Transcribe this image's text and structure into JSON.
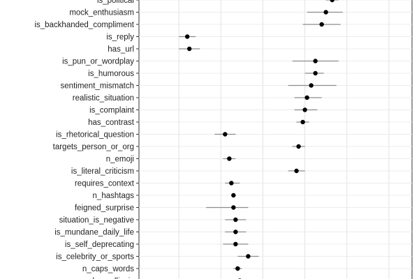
{
  "chart_data": {
    "type": "scatter",
    "title": "",
    "xlabel": "",
    "ylabel": "",
    "grid": true,
    "x_visible_range": [
      -0.59,
      0.71
    ],
    "x_gridlines": [
      -0.4,
      -0.2,
      0.0,
      0.2,
      0.4,
      0.6
    ],
    "categories": [
      "is_political",
      "mock_enthusiasm",
      "is_backhanded_compliment",
      "is_reply",
      "has_url",
      "is_pun_or_wordplay",
      "is_humorous",
      "sentiment_mismatch",
      "realistic_situation",
      "is_complaint",
      "has_contrast",
      "is_rhetorical_question",
      "targets_person_or_org",
      "n_emoji",
      "is_literal_criticism",
      "requires_context",
      "n_hashtags",
      "feigned_surprise",
      "situation_is_negative",
      "is_mundane_daily_life",
      "is_self_deprecating",
      "is_celebrity_or_sports",
      "n_caps_words",
      "has_ellipsis"
    ],
    "series": [
      {
        "estimate": [
          0.33,
          0.3,
          0.28,
          -0.36,
          -0.35,
          0.25,
          0.25,
          0.23,
          0.21,
          0.2,
          0.19,
          -0.18,
          0.17,
          -0.16,
          0.16,
          -0.15,
          -0.14,
          -0.14,
          -0.13,
          -0.13,
          -0.13,
          -0.07,
          -0.12,
          -0.11
        ],
        "ci_low": [
          0.3,
          0.21,
          0.19,
          -0.4,
          -0.4,
          0.14,
          0.2,
          0.12,
          0.15,
          0.15,
          0.16,
          -0.23,
          0.14,
          -0.19,
          0.12,
          -0.18,
          -0.15,
          -0.27,
          -0.18,
          -0.18,
          -0.19,
          -0.12,
          -0.14,
          -0.12
        ],
        "ci_high": [
          0.36,
          0.38,
          0.37,
          -0.32,
          -0.3,
          0.36,
          0.29,
          0.35,
          0.28,
          0.26,
          0.22,
          -0.13,
          0.2,
          -0.13,
          0.2,
          -0.11,
          -0.13,
          -0.07,
          -0.08,
          -0.08,
          -0.07,
          -0.02,
          -0.1,
          -0.1
        ]
      }
    ]
  }
}
